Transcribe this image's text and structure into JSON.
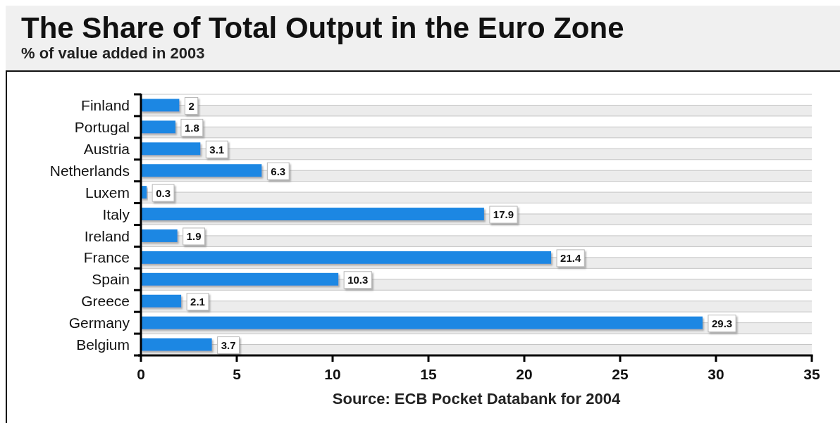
{
  "chart_data": {
    "type": "bar",
    "orientation": "horizontal",
    "title": "The Share of Total Output in the Euro Zone",
    "subtitle": "% of value added in 2003",
    "categories": [
      "Finland",
      "Portugal",
      "Austria",
      "Netherlands",
      "Luxem",
      "Italy",
      "Ireland",
      "France",
      "Spain",
      "Greece",
      "Germany",
      "Belgium"
    ],
    "values": [
      2,
      1.8,
      3.1,
      6.3,
      0.3,
      17.9,
      1.9,
      21.4,
      10.3,
      2.1,
      29.3,
      3.7
    ],
    "color": "#1a87e3",
    "xlim": [
      0,
      35
    ],
    "xticks": [
      0,
      5,
      10,
      15,
      20,
      25,
      30,
      35
    ],
    "grid": "y",
    "data_labels": true,
    "annotations": [
      "Source: ECB Pocket Databank for 2004"
    ]
  }
}
